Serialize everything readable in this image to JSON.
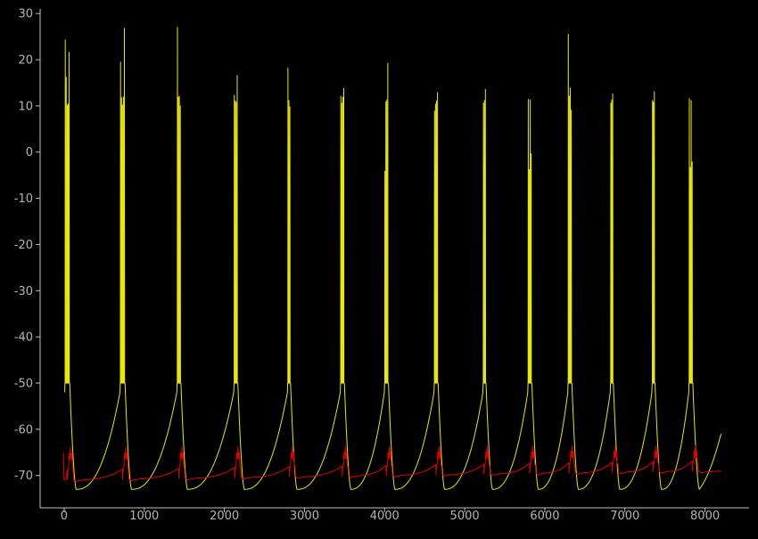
{
  "chart_data": {
    "type": "line",
    "title": "",
    "xlabel": "",
    "ylabel": "",
    "xlim": [
      -300,
      8550
    ],
    "ylim": [
      -77,
      31
    ],
    "grid": false,
    "x_ticks": [
      0,
      1000,
      2000,
      3000,
      4000,
      5000,
      6000,
      7000,
      8000
    ],
    "y_ticks": [
      30,
      20,
      10,
      0,
      -10,
      -20,
      -30,
      -40,
      -50,
      -60,
      -70
    ],
    "colors": {
      "background": "#000000",
      "axis": "#bfbfbf",
      "series_yellow": "#e8e800",
      "series_red": "#e00000"
    },
    "series": [
      {
        "color": "#e8e800",
        "bursts": [
          {
            "x": 10,
            "peaks": [
              24.3,
              16.2,
              10.1,
              10.4,
              21.6
            ]
          },
          {
            "x": 700,
            "peaks": [
              19.5,
              11.8,
              10.2,
              11.9,
              26.8
            ]
          },
          {
            "x": 1410,
            "peaks": [
              27.0,
              11.9,
              12.1,
              10.0
            ]
          },
          {
            "x": 2120,
            "peaks": [
              12.3,
              11.1,
              10.8,
              16.6
            ]
          },
          {
            "x": 2790,
            "peaks": [
              18.2,
              11.2,
              9.8
            ]
          },
          {
            "x": 3450,
            "peaks": [
              12.1,
              10.6,
              11.9,
              13.8
            ]
          },
          {
            "x": 4000,
            "peaks": [
              -4.1,
              10.9,
              11.3,
              19.2
            ]
          },
          {
            "x": 4620,
            "peaks": [
              8.9,
              10.4,
              11.1,
              12.9
            ]
          },
          {
            "x": 5230,
            "peaks": [
              10.6,
              11.2,
              13.6
            ]
          },
          {
            "x": 5790,
            "peaks": [
              11.4,
              -3.8,
              11.3,
              -0.4
            ]
          },
          {
            "x": 6290,
            "peaks": [
              25.5,
              12.1,
              13.9,
              9.1
            ]
          },
          {
            "x": 6820,
            "peaks": [
              10.6,
              11.3,
              12.6
            ]
          },
          {
            "x": 7340,
            "peaks": [
              11.2,
              10.8,
              13.1
            ]
          },
          {
            "x": 7800,
            "peaks": [
              11.6,
              -3.3,
              11.2,
              -2.1
            ]
          }
        ],
        "plateau": -50,
        "trough": -73,
        "end": {
          "x": 8200,
          "y": -61
        }
      },
      {
        "color": "#e00000",
        "baseline_start": -71,
        "baseline_end": -69,
        "bump_centers": [
          80,
          770,
          1470,
          2170,
          2850,
          3510,
          4060,
          4680,
          5280,
          5850,
          6340,
          6880,
          7390,
          7880
        ],
        "bump_max": -63.5,
        "end": {
          "x": 8200,
          "y": -69
        }
      }
    ]
  }
}
